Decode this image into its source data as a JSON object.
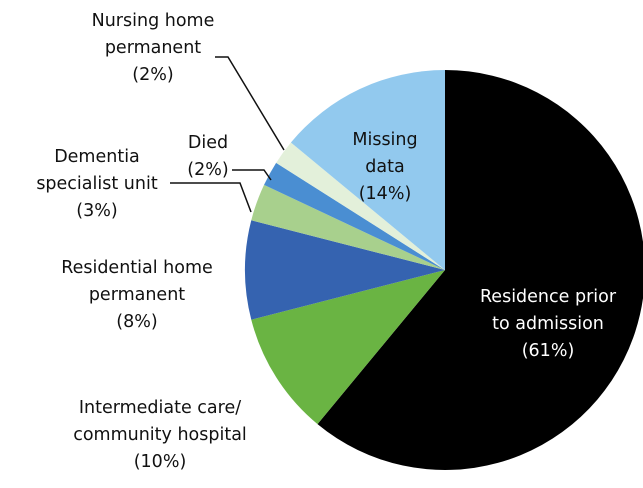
{
  "chart_data": {
    "type": "pie",
    "categories": [
      "Residence prior\nto admission",
      "Intermediate care/\ncommunity hospital",
      "Residential home\npermanent",
      "Dementia\nspecialist unit",
      "Died",
      "Nursing home\npermanent",
      "Missing\ndata"
    ],
    "values": [
      61,
      10,
      8,
      3,
      2,
      2,
      14
    ],
    "value_labels": [
      "(61%)",
      "(10%)",
      "(8%)",
      "(3%)",
      "(2%)",
      "(2%)",
      "(14%)"
    ],
    "colors": [
      "#000000",
      "#6ab443",
      "#3563b0",
      "#a8d08d",
      "#4a8ed2",
      "#e3f0da",
      "#92c9ee"
    ]
  }
}
